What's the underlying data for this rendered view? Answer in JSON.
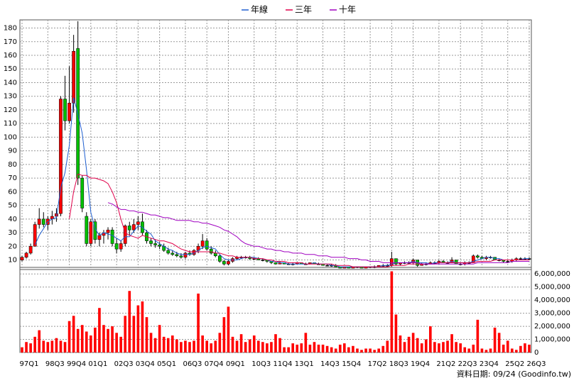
{
  "chart_data": [
    {
      "type": "candlestick",
      "categories": [
        "97Q1",
        null,
        null,
        null,
        null,
        null,
        "98Q3",
        null,
        null,
        null,
        null,
        "99Q4",
        null,
        null,
        null,
        null,
        "01Q1",
        null,
        null,
        null,
        null,
        null,
        "02Q3",
        null,
        null,
        null,
        null,
        "03Q4",
        null,
        null,
        null,
        null,
        "05Q1",
        null,
        null,
        null,
        null,
        null,
        "06Q3",
        null,
        null,
        null,
        null,
        "07Q4",
        null,
        null,
        null,
        null,
        "09Q1",
        null,
        null,
        null,
        null,
        null,
        "10Q3",
        null,
        null,
        null,
        null,
        "11Q4",
        null,
        null,
        null,
        null,
        "13Q1",
        null,
        null,
        null,
        null,
        null,
        "14Q3",
        null,
        null,
        null,
        null,
        "15Q4",
        null,
        null,
        null,
        null,
        null,
        "17Q2",
        null,
        null,
        null,
        null,
        "18Q3",
        null,
        null,
        null,
        null,
        "19Q4",
        null,
        null,
        null,
        null,
        null,
        "21Q2",
        null,
        null,
        null,
        null,
        "22Q3",
        null,
        null,
        null,
        null,
        "23Q4",
        null,
        null,
        null,
        null,
        null,
        "25Q2",
        null,
        null,
        null,
        null,
        "26Q3"
      ],
      "open": [
        10,
        12,
        15,
        20,
        36,
        40,
        36,
        40,
        42,
        44,
        128,
        112,
        125,
        165,
        70,
        42,
        22,
        38,
        25,
        28,
        30,
        32,
        22,
        18,
        22,
        35,
        32,
        36,
        38,
        30,
        24,
        22,
        21,
        20,
        17,
        15,
        14,
        13,
        12,
        15,
        14,
        17,
        20,
        24,
        18,
        15,
        13,
        9,
        7,
        9,
        11,
        12,
        12,
        12,
        11,
        11,
        10,
        10,
        9,
        8,
        7,
        8,
        7,
        7,
        7,
        8,
        7,
        7,
        8,
        7,
        7,
        6,
        6,
        6,
        5,
        4,
        5,
        4,
        5,
        5,
        4,
        5,
        5,
        5,
        6,
        6,
        6,
        11,
        7,
        8,
        8,
        8,
        10,
        6,
        7,
        7,
        8,
        8,
        9,
        8,
        8,
        10,
        7,
        7,
        8,
        8,
        13,
        12,
        11,
        12,
        12,
        10,
        10,
        9,
        9,
        10,
        11,
        11,
        11
      ],
      "high": [
        13,
        16,
        22,
        38,
        48,
        45,
        42,
        46,
        48,
        130,
        145,
        152,
        175,
        185,
        72,
        45,
        40,
        40,
        30,
        32,
        34,
        34,
        26,
        24,
        36,
        38,
        40,
        42,
        44,
        32,
        26,
        25,
        23,
        22,
        19,
        17,
        16,
        15,
        16,
        17,
        18,
        22,
        29,
        26,
        20,
        17,
        14,
        10,
        10,
        12,
        13,
        13,
        13,
        13,
        12,
        12,
        11,
        10,
        9,
        8,
        9,
        8,
        8,
        8,
        8,
        8,
        8,
        8,
        8,
        8,
        7,
        7,
        7,
        7,
        5,
        5,
        5,
        5,
        5,
        5,
        5,
        5,
        6,
        6,
        7,
        7,
        16,
        11,
        8,
        9,
        9,
        11,
        10,
        8,
        8,
        9,
        9,
        10,
        10,
        9,
        12,
        10,
        8,
        9,
        9,
        14,
        14,
        13,
        13,
        13,
        12,
        11,
        10,
        10,
        11,
        12,
        12,
        12,
        12
      ],
      "low": [
        9,
        11,
        14,
        20,
        33,
        34,
        32,
        36,
        38,
        42,
        105,
        110,
        118,
        65,
        45,
        20,
        20,
        22,
        20,
        22,
        25,
        20,
        15,
        16,
        20,
        28,
        30,
        32,
        28,
        22,
        20,
        19,
        18,
        16,
        14,
        13,
        12,
        11,
        11,
        13,
        13,
        15,
        18,
        17,
        14,
        12,
        8,
        6,
        6,
        8,
        10,
        11,
        11,
        10,
        10,
        10,
        9,
        8,
        7,
        7,
        7,
        7,
        7,
        6,
        7,
        7,
        7,
        7,
        7,
        7,
        6,
        6,
        5,
        5,
        4,
        4,
        4,
        4,
        4,
        4,
        4,
        4,
        4,
        5,
        5,
        5,
        5,
        6,
        6,
        7,
        7,
        7,
        5,
        6,
        6,
        7,
        7,
        7,
        8,
        7,
        8,
        7,
        6,
        6,
        7,
        8,
        11,
        11,
        10,
        11,
        10,
        9,
        8,
        8,
        8,
        9,
        10,
        10,
        10
      ],
      "close": [
        12,
        15,
        20,
        36,
        40,
        36,
        40,
        42,
        44,
        128,
        112,
        125,
        163,
        70,
        48,
        22,
        38,
        25,
        28,
        30,
        32,
        22,
        18,
        22,
        35,
        32,
        36,
        38,
        30,
        24,
        22,
        21,
        20,
        17,
        15,
        14,
        13,
        12,
        15,
        14,
        17,
        20,
        24,
        18,
        15,
        13,
        9,
        7,
        9,
        11,
        12,
        12,
        12,
        11,
        11,
        10,
        10,
        9,
        8,
        7,
        8,
        7,
        7,
        7,
        8,
        7,
        7,
        8,
        7,
        7,
        6,
        6,
        6,
        5,
        4,
        5,
        4,
        5,
        5,
        4,
        5,
        5,
        5,
        6,
        6,
        6,
        11,
        7,
        8,
        8,
        8,
        10,
        6,
        7,
        7,
        8,
        8,
        9,
        8,
        8,
        10,
        7,
        7,
        8,
        8,
        13,
        12,
        11,
        12,
        12,
        10,
        10,
        9,
        9,
        10,
        11,
        11,
        11,
        11
      ],
      "up_color": "#ff0000",
      "down_color": "#00c000",
      "flat_color": "#000000",
      "series": [
        {
          "name": "年線",
          "color": "#1f5fd0",
          "values": [
            null,
            null,
            null,
            21,
            28,
            33,
            38,
            40,
            41,
            63,
            74,
            94,
            129,
            117,
            103,
            76,
            45,
            33,
            28,
            30,
            29,
            28,
            26,
            24,
            27,
            27,
            31,
            35,
            34,
            31,
            29,
            24,
            22,
            20,
            18,
            17,
            15,
            14,
            14,
            14,
            15,
            17,
            19,
            20,
            19,
            18,
            14,
            11,
            10,
            10,
            10,
            11,
            12,
            12,
            12,
            11,
            11,
            10,
            9,
            9,
            8,
            8,
            7,
            7,
            7,
            7,
            7,
            7,
            8,
            7,
            7,
            7,
            6,
            6,
            5,
            5,
            5,
            5,
            5,
            5,
            5,
            5,
            5,
            5,
            6,
            6,
            7,
            8,
            8,
            8,
            8,
            9,
            8,
            8,
            8,
            7,
            8,
            8,
            8,
            8,
            9,
            8,
            8,
            8,
            8,
            9,
            10,
            11,
            12,
            12,
            11,
            11,
            10,
            10,
            10,
            10,
            10,
            11,
            11
          ]
        },
        {
          "name": "三年",
          "color": "#e0004a",
          "values": [
            null,
            null,
            null,
            null,
            null,
            null,
            null,
            null,
            null,
            null,
            null,
            40,
            60,
            73,
            72,
            72,
            70,
            70,
            69,
            68,
            66,
            60,
            52,
            40,
            30,
            28,
            27,
            26,
            28,
            27,
            26,
            25,
            24,
            24,
            23,
            22,
            20,
            18,
            17,
            16,
            16,
            16,
            16,
            16,
            16,
            15,
            15,
            14,
            13,
            13,
            12,
            12,
            12,
            12,
            11,
            11,
            11,
            10,
            10,
            9,
            9,
            9,
            8,
            8,
            8,
            8,
            7,
            7,
            7,
            7,
            7,
            7,
            7,
            6,
            6,
            6,
            6,
            5,
            5,
            5,
            5,
            5,
            5,
            5,
            5,
            5,
            6,
            6,
            6,
            6,
            7,
            7,
            7,
            7,
            7,
            7,
            7,
            8,
            8,
            8,
            8,
            8,
            8,
            8,
            8,
            8,
            9,
            9,
            9,
            9,
            10,
            10,
            10,
            10,
            10,
            10,
            10,
            10,
            10
          ]
        },
        {
          "name": "十年",
          "color": "#a000c0",
          "values": [
            null,
            null,
            null,
            null,
            null,
            null,
            null,
            null,
            null,
            null,
            null,
            null,
            null,
            null,
            null,
            null,
            null,
            null,
            null,
            null,
            52,
            51,
            49,
            47,
            47,
            46,
            46,
            45,
            45,
            44,
            43,
            43,
            42,
            41,
            41,
            40,
            39,
            39,
            39,
            39,
            38,
            38,
            37,
            37,
            36,
            35,
            34,
            32,
            31,
            29,
            27,
            24,
            22,
            21,
            20,
            20,
            19,
            18,
            18,
            17,
            17,
            16,
            16,
            15,
            15,
            15,
            14,
            14,
            14,
            13,
            13,
            13,
            12,
            12,
            12,
            12,
            11,
            11,
            11,
            10,
            10,
            9,
            9,
            9,
            8,
            8,
            8,
            8,
            8,
            8,
            8,
            8,
            8,
            7,
            7,
            7,
            7,
            7,
            7,
            7,
            7,
            7,
            7,
            7,
            7,
            7,
            8,
            8,
            8,
            8,
            8,
            8,
            8,
            8,
            9,
            9,
            9,
            9,
            9
          ]
        }
      ],
      "ylim": [
        3,
        186
      ],
      "yticks": [
        10,
        20,
        30,
        40,
        50,
        60,
        70,
        80,
        90,
        100,
        110,
        120,
        130,
        140,
        150,
        160,
        170,
        180
      ],
      "grid": true,
      "legend": "top"
    },
    {
      "type": "bar",
      "values": [
        400000,
        800000,
        700000,
        1200000,
        1700000,
        900000,
        800000,
        900000,
        1100000,
        900000,
        800000,
        2400000,
        2800000,
        1800000,
        2100000,
        1600000,
        1300000,
        1900000,
        3400000,
        2100000,
        1800000,
        2000000,
        1500000,
        1200000,
        2800000,
        4700000,
        2800000,
        3600000,
        3900000,
        2700000,
        1500000,
        1100000,
        2100000,
        1200000,
        1100000,
        1300000,
        1000000,
        800000,
        900000,
        800000,
        900000,
        4500000,
        1300000,
        900000,
        700000,
        900000,
        1500000,
        2700000,
        3500000,
        1200000,
        900000,
        1400000,
        800000,
        1000000,
        1300000,
        900000,
        800000,
        700000,
        800000,
        1400000,
        1100000,
        400000,
        400000,
        700000,
        600000,
        700000,
        1500000,
        600000,
        800000,
        600000,
        600000,
        500000,
        400000,
        300000,
        600000,
        700000,
        400000,
        500000,
        300000,
        200000,
        300000,
        300000,
        200000,
        300000,
        500000,
        900000,
        6200000,
        2900000,
        1300000,
        800000,
        1200000,
        1500000,
        1100000,
        700000,
        1000000,
        2000000,
        800000,
        700000,
        800000,
        900000,
        1400000,
        800000,
        700000,
        400000,
        300000,
        600000,
        2500000,
        300000,
        200000,
        300000,
        1900000,
        1500000,
        600000,
        900000,
        300000,
        200000,
        500000,
        700000,
        600000
      ],
      "color": "#ff0000",
      "ylim": [
        0,
        6500000
      ],
      "yticks": [
        0,
        {
          "value": 1000000,
          "label": "1,000,000"
        },
        {
          "value": 2000000,
          "label": "2,000,000"
        },
        {
          "value": 3000000,
          "label": "3,000,000"
        },
        {
          "value": 4000000,
          "label": "4,000,000"
        },
        {
          "value": 5000000,
          "label": "5,000,000"
        },
        {
          "value": 6000000,
          "label": "6,000,000"
        }
      ],
      "grid": true,
      "source": "資料日期: 09/24 (Goodinfo.tw)"
    }
  ]
}
